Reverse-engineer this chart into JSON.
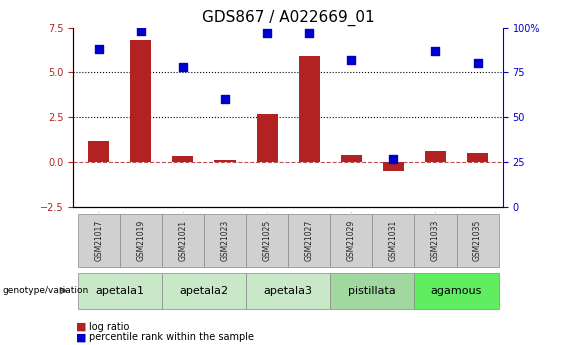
{
  "title": "GDS867 / A022669_01",
  "samples": [
    "GSM21017",
    "GSM21019",
    "GSM21021",
    "GSM21023",
    "GSM21025",
    "GSM21027",
    "GSM21029",
    "GSM21031",
    "GSM21033",
    "GSM21035"
  ],
  "log_ratio": [
    1.2,
    6.8,
    0.35,
    0.1,
    2.7,
    5.9,
    0.4,
    -0.5,
    0.6,
    0.5
  ],
  "percentile_rank": [
    88,
    98,
    78,
    60,
    97,
    97,
    82,
    27,
    87,
    80
  ],
  "group_labels": [
    "apetala1",
    "apetala2",
    "apetala3",
    "pistillata",
    "agamous"
  ],
  "group_colors": [
    "#c8e8c8",
    "#c8e8c8",
    "#c8e8c8",
    "#a0d8a0",
    "#60ee60"
  ],
  "bar_color": "#b22222",
  "dot_color": "#0000cc",
  "left_ylim": [
    -2.5,
    7.5
  ],
  "right_ylim": [
    0,
    100
  ],
  "left_yticks": [
    -2.5,
    0,
    2.5,
    5,
    7.5
  ],
  "right_ytick_vals": [
    0,
    25,
    50,
    75,
    100
  ],
  "right_ytick_labels": [
    "0",
    "25",
    "50",
    "75",
    "100%"
  ],
  "legend_items": [
    "log ratio",
    "percentile rank within the sample"
  ],
  "legend_colors": [
    "#b22222",
    "#0000cc"
  ],
  "genotype_label": "genotype/variation",
  "title_fontsize": 11,
  "tick_fontsize": 7,
  "group_label_fontsize": 8,
  "sample_box_color": "#d0d0d0",
  "sample_box_edge": "#888888",
  "group_box_edge": "#888888"
}
